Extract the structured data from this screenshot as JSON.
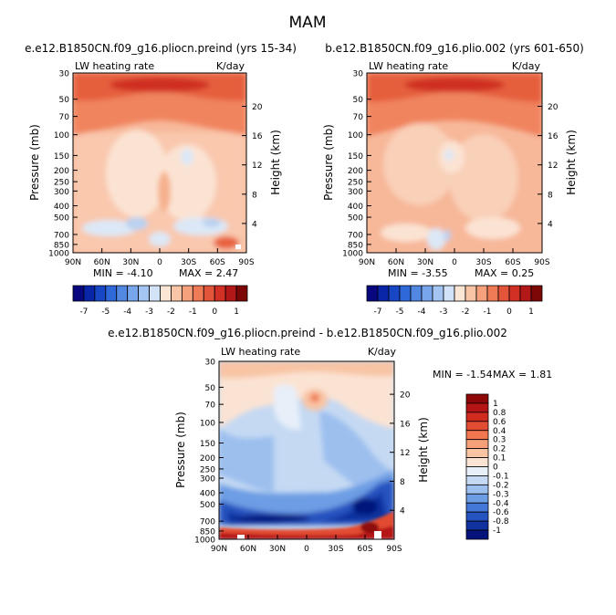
{
  "figure_title": "MAM",
  "chart_data": [
    {
      "type": "heatmap",
      "panel": "top-left",
      "title": "e.e12.B1850CN.f09_g16.pliocn.preind (yrs 15-34)",
      "variable_label": "LW heating rate",
      "units": "K/day",
      "ylabel": "Pressure (mb)",
      "ylabel_right": "Height (km)",
      "x_ticks": [
        "90N",
        "60N",
        "30N",
        "0",
        "30S",
        "60S",
        "90S"
      ],
      "y_ticks": [
        "30",
        "50",
        "70",
        "100",
        "150",
        "200",
        "250",
        "300",
        "400",
        "500",
        "700",
        "850",
        "1000"
      ],
      "y_ticks_right": [
        "20",
        "16",
        "12",
        "8",
        "4"
      ],
      "min_label": "MIN = -4.10",
      "max_label": "MAX = 2.47"
    },
    {
      "type": "heatmap",
      "panel": "top-right",
      "title": "b.e12.B1850CN.f09_g16.plio.002 (yrs 601-650)",
      "variable_label": "LW heating rate",
      "units": "K/day",
      "ylabel": "Pressure (mb)",
      "ylabel_right": "Height (km)",
      "x_ticks": [
        "90N",
        "60N",
        "30N",
        "0",
        "30S",
        "60S",
        "90S"
      ],
      "y_ticks": [
        "30",
        "50",
        "70",
        "100",
        "150",
        "200",
        "250",
        "300",
        "400",
        "500",
        "700",
        "850",
        "1000"
      ],
      "y_ticks_right": [
        "20",
        "16",
        "12",
        "8",
        "4"
      ],
      "min_label": "MIN = -3.55",
      "max_label": "MAX = 0.25"
    },
    {
      "type": "heatmap",
      "panel": "bottom",
      "title": "e.e12.B1850CN.f09_g16.pliocn.preind - b.e12.B1850CN.f09_g16.plio.002",
      "variable_label": "LW heating rate",
      "units": "K/day",
      "ylabel": "Pressure (mb)",
      "ylabel_right": "Height (km)",
      "x_ticks": [
        "90N",
        "60N",
        "30N",
        "0",
        "30S",
        "60S",
        "90S"
      ],
      "y_ticks": [
        "30",
        "50",
        "70",
        "100",
        "150",
        "200",
        "250",
        "300",
        "400",
        "500",
        "700",
        "850",
        "1000"
      ],
      "y_ticks_right": [
        "20",
        "16",
        "12",
        "8",
        "4"
      ],
      "min_label": "MIN = -1.54",
      "max_label": "MAX = 1.81"
    }
  ],
  "colorbar_top": {
    "labels": [
      "-7",
      "-5",
      "-4",
      "-3",
      "-2",
      "-1",
      "0",
      "1"
    ],
    "colors": [
      "#08077f",
      "#0a26a8",
      "#1847c6",
      "#2f68d8",
      "#5288e2",
      "#78a6ec",
      "#a4c4f2",
      "#d2e2f7",
      "#fbe6d6",
      "#f8c6a6",
      "#f4a17c",
      "#ee7b55",
      "#e3553a",
      "#d22f25",
      "#b31818",
      "#7d0606"
    ]
  },
  "colorbar_bottom": {
    "labels": [
      "1",
      "0.8",
      "0.6",
      "0.4",
      "0.3",
      "0.2",
      "0.1",
      "0",
      "-0.1",
      "-0.2",
      "-0.3",
      "-0.4",
      "-0.6",
      "-0.8",
      "-1"
    ],
    "colors": [
      "#8e0707",
      "#b51414",
      "#d12a1f",
      "#e24c33",
      "#f0774f",
      "#f6a079",
      "#f8c4a4",
      "#fbe3d3",
      "#e7eff9",
      "#c5d9f3",
      "#9cbfee",
      "#6d9de4",
      "#4478d8",
      "#2553bf",
      "#10329f",
      "#06137a"
    ]
  }
}
